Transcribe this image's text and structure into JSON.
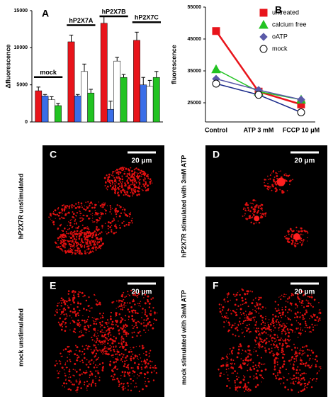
{
  "chart_data": [
    {
      "type": "bar",
      "label": "A",
      "y_label": "Δfluorescence",
      "categories": [
        "mock",
        "hP2X7A",
        "hP2X7B",
        "hP2X7C"
      ],
      "series": [
        {
          "color": "#e8141b",
          "values": [
            4200,
            10800,
            13300,
            11000
          ],
          "errors": [
            500,
            900,
            900,
            1100
          ]
        },
        {
          "color": "#3a6ee8",
          "values": [
            3500,
            3500,
            1700,
            5000
          ],
          "errors": [
            200,
            200,
            1100,
            1000
          ]
        },
        {
          "color": "#ffffff",
          "values": [
            3000,
            6800,
            8200,
            4800
          ],
          "errors": [
            400,
            1000,
            500,
            800
          ]
        },
        {
          "color": "#22c322",
          "values": [
            2200,
            3900,
            6000,
            6000
          ],
          "errors": [
            300,
            500,
            400,
            800
          ]
        }
      ],
      "ylim": [
        0,
        15000
      ],
      "yticks": [
        0,
        5000,
        10000,
        15000
      ]
    },
    {
      "type": "line",
      "label": "B",
      "y_label": "fluorescence",
      "categories": [
        "Control",
        "ATP 3 mM",
        "FCCP 10 μM"
      ],
      "series": [
        {
          "name": "untreated",
          "color": "#e8141b",
          "marker": "square",
          "values": [
            47500,
            28500,
            24500
          ]
        },
        {
          "name": "calcium free",
          "color": "#22c322",
          "marker": "triangle",
          "values": [
            35500,
            28500,
            26000
          ]
        },
        {
          "name": "oATP",
          "color": "#5a5aa8",
          "marker": "diamond",
          "values": [
            32500,
            29000,
            26000
          ]
        },
        {
          "name": "mock",
          "color": "#ffffff",
          "marker": "circle",
          "values": [
            31000,
            27500,
            22000
          ]
        }
      ],
      "ylim": [
        19000,
        55000
      ],
      "yticks": [
        25000,
        35000,
        45000,
        55000
      ]
    }
  ],
  "panels": [
    {
      "label": "C",
      "side_label": "hP2X7R unstimulated",
      "scale_bar": "20 μm"
    },
    {
      "label": "D",
      "side_label": "hP2X7R stimulated with 3mM ATP",
      "scale_bar": "20 μm"
    },
    {
      "label": "E",
      "side_label": "mock  unstimulated",
      "scale_bar": "20 μm"
    },
    {
      "label": "F",
      "side_label": "mock stimulated with 3mM ATP",
      "scale_bar": "20 μm"
    }
  ]
}
